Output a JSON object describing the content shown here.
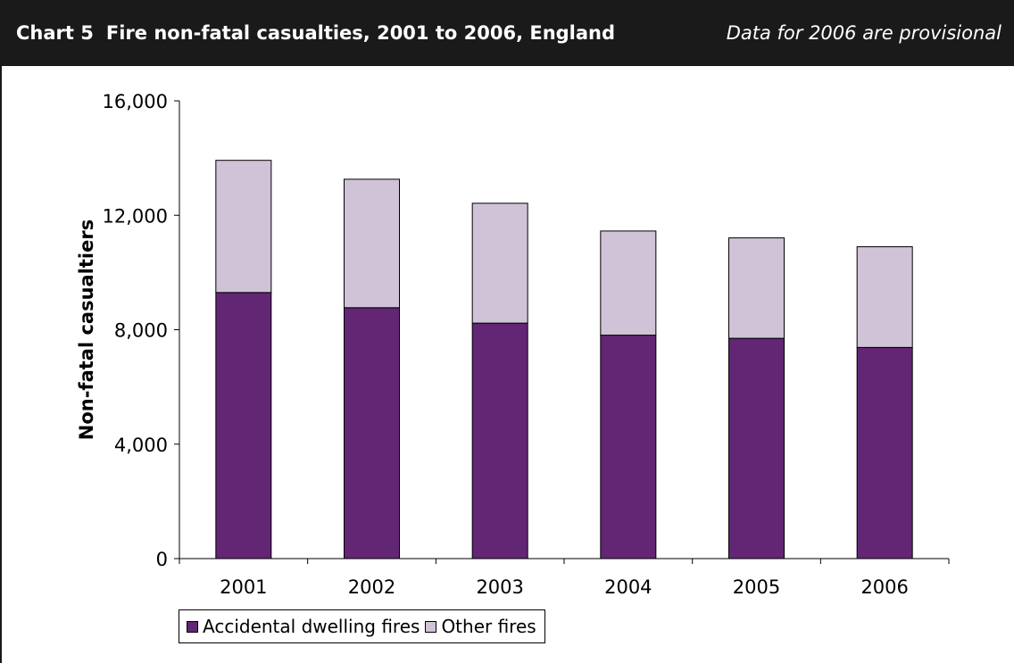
{
  "header": {
    "chart_label": "Chart 5",
    "title": "Fire non-fatal casualties, 2001 to 2006, England",
    "note": "Data for 2006 are provisional"
  },
  "colors": {
    "accidental": "#622674",
    "other": "#d0c3d7",
    "header_bg": "#1a1a1a"
  },
  "chart_data": {
    "type": "bar",
    "stacked": true,
    "title": "Fire non-fatal casualties, 2001 to 2006, England",
    "ylabel": "Non-fatal casualtiers",
    "xlabel": "",
    "categories": [
      "2001",
      "2002",
      "2003",
      "2004",
      "2005",
      "2006"
    ],
    "ylim": [
      0,
      16000
    ],
    "yticks": [
      0,
      4000,
      8000,
      12000,
      16000
    ],
    "ytick_labels": [
      "0",
      "4,000",
      "8,000",
      "12,000",
      "16,000"
    ],
    "grid": false,
    "legend_position": "bottom-left",
    "series": [
      {
        "name": "Accidental dwelling fires",
        "values": [
          9300,
          8770,
          8230,
          7810,
          7700,
          7380
        ]
      },
      {
        "name": "Other fires",
        "values": [
          4620,
          4490,
          4190,
          3640,
          3510,
          3520
        ]
      }
    ]
  }
}
